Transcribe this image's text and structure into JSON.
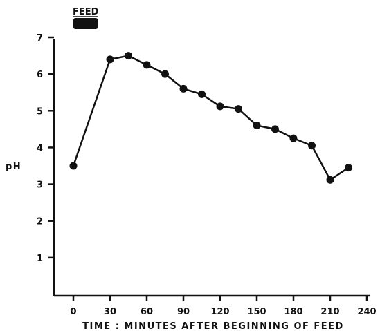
{
  "chart_data": {
    "type": "line",
    "title": "",
    "xlabel": "TIME : MINUTES AFTER BEGINNING OF FEED",
    "ylabel": "pH",
    "xlim": [
      0,
      240
    ],
    "ylim": [
      0,
      7
    ],
    "xticks": [
      0,
      30,
      60,
      90,
      120,
      150,
      180,
      210,
      240
    ],
    "yticks": [
      1,
      2,
      3,
      4,
      5,
      6,
      7
    ],
    "grid": false,
    "series": [
      {
        "x": [
          0,
          30,
          45,
          60,
          75,
          90,
          105,
          120,
          135,
          150,
          165,
          180,
          195,
          210,
          225
        ],
        "y": [
          3.5,
          6.4,
          6.5,
          6.25,
          6.0,
          5.6,
          5.45,
          5.12,
          5.05,
          4.6,
          4.5,
          4.25,
          4.05,
          3.12,
          3.45
        ]
      }
    ],
    "annotations": [
      {
        "text": "FEED",
        "x_start": 0,
        "x_end": 20
      }
    ]
  }
}
